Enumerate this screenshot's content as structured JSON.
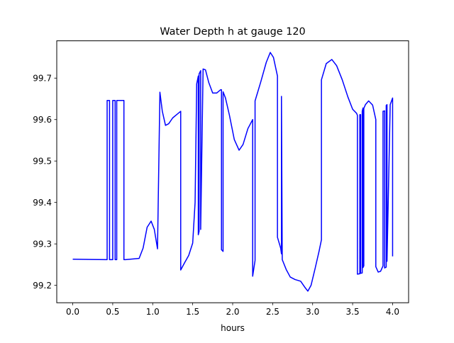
{
  "chart_data": {
    "type": "line",
    "title": "Water Depth h at gauge 120",
    "xlabel": "hours",
    "ylabel": "",
    "xlim": [
      -0.2,
      4.2
    ],
    "ylim": [
      99.158,
      99.79
    ],
    "xticks": [
      0.0,
      0.5,
      1.0,
      1.5,
      2.0,
      2.5,
      3.0,
      3.5,
      4.0
    ],
    "xtick_labels": [
      "0.0",
      "0.5",
      "1.0",
      "1.5",
      "2.0",
      "2.5",
      "3.0",
      "3.5",
      "4.0"
    ],
    "yticks": [
      99.2,
      99.3,
      99.4,
      99.5,
      99.6,
      99.7
    ],
    "ytick_labels": [
      "99.2",
      "99.3",
      "99.4",
      "99.5",
      "99.6",
      "99.7"
    ],
    "grid": false,
    "series": [
      {
        "name": "",
        "color": "#0000ff",
        "x": [
          0.0,
          0.43,
          0.43,
          0.46,
          0.46,
          0.5,
          0.5,
          0.53,
          0.53,
          0.55,
          0.55,
          0.64,
          0.64,
          0.66,
          0.66,
          0.83,
          0.88,
          0.93,
          0.98,
          1.02,
          1.06,
          1.09,
          1.09,
          1.12,
          1.16,
          1.2,
          1.25,
          1.3,
          1.35,
          1.35,
          1.4,
          1.45,
          1.5,
          1.53,
          1.55,
          1.55,
          1.57,
          1.57,
          1.58,
          1.58,
          1.6,
          1.6,
          1.63,
          1.66,
          1.7,
          1.75,
          1.8,
          1.85,
          1.86,
          1.86,
          1.88,
          1.88,
          1.91,
          1.96,
          2.02,
          2.08,
          2.13,
          2.19,
          2.25,
          2.25,
          2.28,
          2.28,
          2.35,
          2.42,
          2.47,
          2.51,
          2.56,
          2.56,
          2.6,
          2.61,
          2.61,
          2.62,
          2.67,
          2.72,
          2.78,
          2.85,
          2.9,
          2.94,
          2.98,
          3.03,
          3.08,
          3.11,
          3.11,
          3.17,
          3.24,
          3.3,
          3.37,
          3.44,
          3.5,
          3.55,
          3.56,
          3.56,
          3.59,
          3.59,
          3.6,
          3.6,
          3.62,
          3.62,
          3.63,
          3.63,
          3.64,
          3.64,
          3.66,
          3.7,
          3.75,
          3.79,
          3.79,
          3.82,
          3.85,
          3.88,
          3.88,
          3.9,
          3.9,
          3.92,
          3.92,
          3.93,
          3.93,
          3.97,
          4.0,
          4.0
        ],
        "y": [
          99.263,
          99.262,
          99.646,
          99.646,
          99.262,
          99.262,
          99.646,
          99.646,
          99.262,
          99.262,
          99.646,
          99.646,
          99.262,
          99.262,
          99.262,
          99.265,
          99.29,
          99.34,
          99.355,
          99.335,
          99.288,
          99.666,
          99.666,
          99.62,
          99.586,
          99.59,
          99.604,
          99.612,
          99.62,
          99.237,
          99.255,
          99.272,
          99.302,
          99.4,
          99.686,
          99.686,
          99.705,
          99.322,
          99.33,
          99.71,
          99.718,
          99.335,
          99.722,
          99.72,
          99.69,
          99.664,
          99.664,
          99.672,
          99.672,
          99.286,
          99.282,
          99.667,
          99.652,
          99.61,
          99.552,
          99.526,
          99.54,
          99.578,
          99.6,
          99.222,
          99.26,
          99.645,
          99.69,
          99.738,
          99.762,
          99.75,
          99.705,
          99.316,
          99.29,
          99.276,
          99.656,
          99.262,
          99.238,
          99.22,
          99.214,
          99.21,
          99.196,
          99.186,
          99.2,
          99.24,
          99.282,
          99.31,
          99.696,
          99.735,
          99.745,
          99.73,
          99.696,
          99.655,
          99.625,
          99.615,
          99.61,
          99.227,
          99.228,
          99.612,
          99.612,
          99.229,
          99.23,
          99.62,
          99.628,
          99.243,
          99.247,
          99.627,
          99.636,
          99.645,
          99.635,
          99.6,
          99.245,
          99.232,
          99.234,
          99.247,
          99.62,
          99.621,
          99.242,
          99.244,
          99.634,
          99.636,
          99.258,
          99.636,
          99.652,
          99.27
        ]
      }
    ]
  }
}
